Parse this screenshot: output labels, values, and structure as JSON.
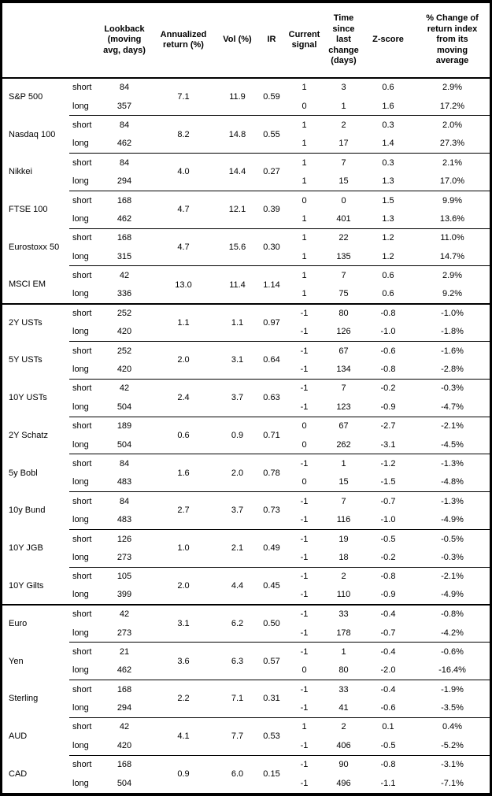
{
  "table": {
    "columns": [
      "",
      "",
      "Lookback\n(moving\navg, days)",
      "Annualized\nreturn (%)",
      "Vol (%)",
      "IR",
      "Current\nsignal",
      "Time since\nlast change\n(days)",
      "Z-score",
      "% Change of\nreturn index\nfrom its\nmoving\naverage"
    ],
    "sections": [
      {
        "assets": [
          {
            "name": "S&P 500",
            "annualized_return": "7.1",
            "vol": "11.9",
            "ir": "0.59",
            "rows": [
              {
                "horizon": "short",
                "lookback": "84",
                "signal": "1",
                "time_since_change": "3",
                "z_score": "0.6",
                "pct_change": "2.9%"
              },
              {
                "horizon": "long",
                "lookback": "357",
                "signal": "0",
                "time_since_change": "1",
                "z_score": "1.6",
                "pct_change": "17.2%"
              }
            ]
          },
          {
            "name": "Nasdaq 100",
            "annualized_return": "8.2",
            "vol": "14.8",
            "ir": "0.55",
            "rows": [
              {
                "horizon": "short",
                "lookback": "84",
                "signal": "1",
                "time_since_change": "2",
                "z_score": "0.3",
                "pct_change": "2.0%"
              },
              {
                "horizon": "long",
                "lookback": "462",
                "signal": "1",
                "time_since_change": "17",
                "z_score": "1.4",
                "pct_change": "27.3%"
              }
            ]
          },
          {
            "name": "Nikkei",
            "annualized_return": "4.0",
            "vol": "14.4",
            "ir": "0.27",
            "rows": [
              {
                "horizon": "short",
                "lookback": "84",
                "signal": "1",
                "time_since_change": "7",
                "z_score": "0.3",
                "pct_change": "2.1%"
              },
              {
                "horizon": "long",
                "lookback": "294",
                "signal": "1",
                "time_since_change": "15",
                "z_score": "1.3",
                "pct_change": "17.0%"
              }
            ]
          },
          {
            "name": "FTSE 100",
            "annualized_return": "4.7",
            "vol": "12.1",
            "ir": "0.39",
            "rows": [
              {
                "horizon": "short",
                "lookback": "168",
                "signal": "0",
                "time_since_change": "0",
                "z_score": "1.5",
                "pct_change": "9.9%"
              },
              {
                "horizon": "long",
                "lookback": "462",
                "signal": "1",
                "time_since_change": "401",
                "z_score": "1.3",
                "pct_change": "13.6%"
              }
            ]
          },
          {
            "name": "Eurostoxx 50",
            "annualized_return": "4.7",
            "vol": "15.6",
            "ir": "0.30",
            "rows": [
              {
                "horizon": "short",
                "lookback": "168",
                "signal": "1",
                "time_since_change": "22",
                "z_score": "1.2",
                "pct_change": "11.0%"
              },
              {
                "horizon": "long",
                "lookback": "315",
                "signal": "1",
                "time_since_change": "135",
                "z_score": "1.2",
                "pct_change": "14.7%"
              }
            ]
          },
          {
            "name": "MSCI EM",
            "annualized_return": "13.0",
            "vol": "11.4",
            "ir": "1.14",
            "rows": [
              {
                "horizon": "short",
                "lookback": "42",
                "signal": "1",
                "time_since_change": "7",
                "z_score": "0.6",
                "pct_change": "2.9%"
              },
              {
                "horizon": "long",
                "lookback": "336",
                "signal": "1",
                "time_since_change": "75",
                "z_score": "0.6",
                "pct_change": "9.2%"
              }
            ]
          }
        ]
      },
      {
        "assets": [
          {
            "name": "2Y USTs",
            "annualized_return": "1.1",
            "vol": "1.1",
            "ir": "0.97",
            "rows": [
              {
                "horizon": "short",
                "lookback": "252",
                "signal": "-1",
                "time_since_change": "80",
                "z_score": "-0.8",
                "pct_change": "-1.0%"
              },
              {
                "horizon": "long",
                "lookback": "420",
                "signal": "-1",
                "time_since_change": "126",
                "z_score": "-1.0",
                "pct_change": "-1.8%"
              }
            ]
          },
          {
            "name": "5Y USTs",
            "annualized_return": "2.0",
            "vol": "3.1",
            "ir": "0.64",
            "rows": [
              {
                "horizon": "short",
                "lookback": "252",
                "signal": "-1",
                "time_since_change": "67",
                "z_score": "-0.6",
                "pct_change": "-1.6%"
              },
              {
                "horizon": "long",
                "lookback": "420",
                "signal": "-1",
                "time_since_change": "134",
                "z_score": "-0.8",
                "pct_change": "-2.8%"
              }
            ]
          },
          {
            "name": "10Y USTs",
            "annualized_return": "2.4",
            "vol": "3.7",
            "ir": "0.63",
            "rows": [
              {
                "horizon": "short",
                "lookback": "42",
                "signal": "-1",
                "time_since_change": "7",
                "z_score": "-0.2",
                "pct_change": "-0.3%"
              },
              {
                "horizon": "long",
                "lookback": "504",
                "signal": "-1",
                "time_since_change": "123",
                "z_score": "-0.9",
                "pct_change": "-4.7%"
              }
            ]
          },
          {
            "name": "2Y Schatz",
            "annualized_return": "0.6",
            "vol": "0.9",
            "ir": "0.71",
            "rows": [
              {
                "horizon": "short",
                "lookback": "189",
                "signal": "0",
                "time_since_change": "67",
                "z_score": "-2.7",
                "pct_change": "-2.1%"
              },
              {
                "horizon": "long",
                "lookback": "504",
                "signal": "0",
                "time_since_change": "262",
                "z_score": "-3.1",
                "pct_change": "-4.5%"
              }
            ]
          },
          {
            "name": "5y Bobl",
            "annualized_return": "1.6",
            "vol": "2.0",
            "ir": "0.78",
            "rows": [
              {
                "horizon": "short",
                "lookback": "84",
                "signal": "-1",
                "time_since_change": "1",
                "z_score": "-1.2",
                "pct_change": "-1.3%"
              },
              {
                "horizon": "long",
                "lookback": "483",
                "signal": "0",
                "time_since_change": "15",
                "z_score": "-1.5",
                "pct_change": "-4.8%"
              }
            ]
          },
          {
            "name": "10y Bund",
            "annualized_return": "2.7",
            "vol": "3.7",
            "ir": "0.73",
            "rows": [
              {
                "horizon": "short",
                "lookback": "84",
                "signal": "-1",
                "time_since_change": "7",
                "z_score": "-0.7",
                "pct_change": "-1.3%"
              },
              {
                "horizon": "long",
                "lookback": "483",
                "signal": "-1",
                "time_since_change": "116",
                "z_score": "-1.0",
                "pct_change": "-4.9%"
              }
            ]
          },
          {
            "name": "10Y JGB",
            "annualized_return": "1.0",
            "vol": "2.1",
            "ir": "0.49",
            "rows": [
              {
                "horizon": "short",
                "lookback": "126",
                "signal": "-1",
                "time_since_change": "19",
                "z_score": "-0.5",
                "pct_change": "-0.5%"
              },
              {
                "horizon": "long",
                "lookback": "273",
                "signal": "-1",
                "time_since_change": "18",
                "z_score": "-0.2",
                "pct_change": "-0.3%"
              }
            ]
          },
          {
            "name": "10Y Gilts",
            "annualized_return": "2.0",
            "vol": "4.4",
            "ir": "0.45",
            "rows": [
              {
                "horizon": "short",
                "lookback": "105",
                "signal": "-1",
                "time_since_change": "2",
                "z_score": "-0.8",
                "pct_change": "-2.1%"
              },
              {
                "horizon": "long",
                "lookback": "399",
                "signal": "-1",
                "time_since_change": "110",
                "z_score": "-0.9",
                "pct_change": "-4.9%"
              }
            ]
          }
        ]
      },
      {
        "assets": [
          {
            "name": "Euro",
            "annualized_return": "3.1",
            "vol": "6.2",
            "ir": "0.50",
            "rows": [
              {
                "horizon": "short",
                "lookback": "42",
                "signal": "-1",
                "time_since_change": "33",
                "z_score": "-0.4",
                "pct_change": "-0.8%"
              },
              {
                "horizon": "long",
                "lookback": "273",
                "signal": "-1",
                "time_since_change": "178",
                "z_score": "-0.7",
                "pct_change": "-4.2%"
              }
            ]
          },
          {
            "name": "Yen",
            "annualized_return": "3.6",
            "vol": "6.3",
            "ir": "0.57",
            "rows": [
              {
                "horizon": "short",
                "lookback": "21",
                "signal": "-1",
                "time_since_change": "1",
                "z_score": "-0.4",
                "pct_change": "-0.6%"
              },
              {
                "horizon": "long",
                "lookback": "462",
                "signal": "0",
                "time_since_change": "80",
                "z_score": "-2.0",
                "pct_change": "-16.4%"
              }
            ]
          },
          {
            "name": "Sterling",
            "annualized_return": "2.2",
            "vol": "7.1",
            "ir": "0.31",
            "rows": [
              {
                "horizon": "short",
                "lookback": "168",
                "signal": "-1",
                "time_since_change": "33",
                "z_score": "-0.4",
                "pct_change": "-1.9%"
              },
              {
                "horizon": "long",
                "lookback": "294",
                "signal": "-1",
                "time_since_change": "41",
                "z_score": "-0.6",
                "pct_change": "-3.5%"
              }
            ]
          },
          {
            "name": "AUD",
            "annualized_return": "4.1",
            "vol": "7.7",
            "ir": "0.53",
            "rows": [
              {
                "horizon": "short",
                "lookback": "42",
                "signal": "1",
                "time_since_change": "2",
                "z_score": "0.1",
                "pct_change": "0.4%"
              },
              {
                "horizon": "long",
                "lookback": "420",
                "signal": "-1",
                "time_since_change": "406",
                "z_score": "-0.5",
                "pct_change": "-5.2%"
              }
            ]
          },
          {
            "name": "CAD",
            "annualized_return": "0.9",
            "vol": "6.0",
            "ir": "0.15",
            "rows": [
              {
                "horizon": "short",
                "lookback": "168",
                "signal": "-1",
                "time_since_change": "90",
                "z_score": "-0.8",
                "pct_change": "-3.1%"
              },
              {
                "horizon": "long",
                "lookback": "504",
                "signal": "-1",
                "time_since_change": "496",
                "z_score": "-1.1",
                "pct_change": "-7.1%"
              }
            ]
          }
        ]
      }
    ]
  }
}
